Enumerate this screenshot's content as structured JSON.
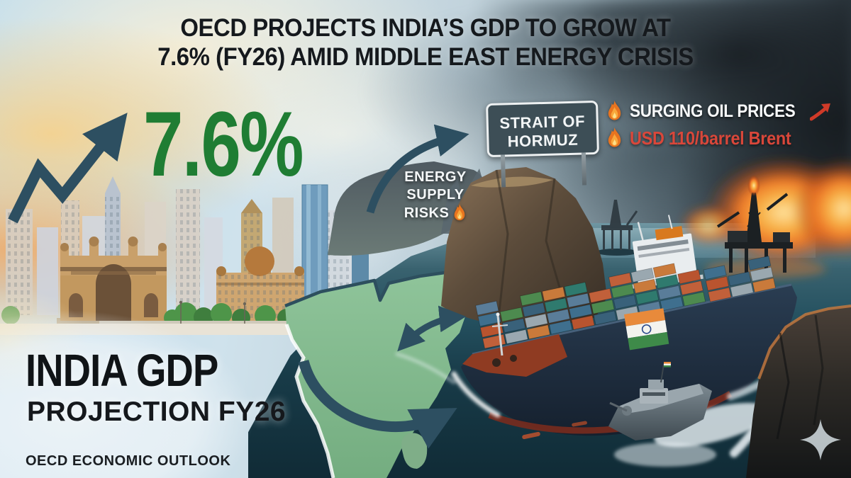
{
  "title": {
    "line1": "OECD PROJECTS INDIA’S GDP TO GROW AT",
    "line2": "7.6% (FY26) AMID MIDDLE EAST ENERGY CRISIS"
  },
  "gdp_figure": "7.6%",
  "strait_sign": {
    "line1": "STRAIT OF",
    "line2": "HORMUZ"
  },
  "oil_callouts": {
    "surging_label": "SURGING OIL PRICES",
    "price_label": "USD 110/barrel Brent"
  },
  "energy_risks": {
    "line1": "ENERGY",
    "line2": "SUPPLY",
    "line3": "RISKS"
  },
  "headline": {
    "title": "INDIA GDP",
    "subtitle": "PROJECTION FY26"
  },
  "source": "OECD ECONOMIC OUTLOOK",
  "colors": {
    "gdp_green": "#1f7d33",
    "arrow_slate": "#2d4f61",
    "oil_red": "#d9473a",
    "flame_orange": "#f08a24",
    "sign_bg": "#3d4e56",
    "map_green": "#84ba8e",
    "sea_teal": "#1c4252",
    "hull_navy": "#1d2d40",
    "fire_orange": "#ef7a28"
  }
}
